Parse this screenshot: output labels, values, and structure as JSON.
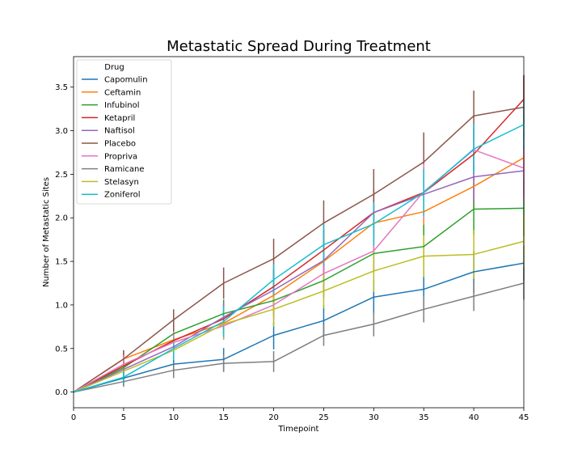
{
  "chart_data": {
    "type": "line",
    "title": "Metastatic Spread During Treatment",
    "xlabel": "Timepoint",
    "ylabel": "Number of Metastatic Sites",
    "xlim": [
      0,
      45
    ],
    "ylim": [
      -0.18,
      3.85
    ],
    "xticks": [
      0,
      5,
      10,
      15,
      20,
      25,
      30,
      35,
      40,
      45
    ],
    "yticks": [
      0.0,
      0.5,
      1.0,
      1.5,
      2.0,
      2.5,
      3.0,
      3.5
    ],
    "ytick_labels": [
      "0.0",
      "0.5",
      "1.0",
      "1.5",
      "2.0",
      "2.5",
      "3.0",
      "3.5"
    ],
    "grid": false,
    "legend": {
      "title": "Drug",
      "position": "top-left"
    },
    "x": [
      0,
      5,
      10,
      15,
      20,
      25,
      30,
      35,
      40,
      45
    ],
    "series": [
      {
        "name": "Capomulin",
        "color": "#1f77b4",
        "values": [
          0.0,
          0.16,
          0.32,
          0.375,
          0.65,
          0.82,
          1.09,
          1.18,
          1.38,
          1.48
        ],
        "errors": [
          0.0,
          0.08,
          0.12,
          0.13,
          0.16,
          0.18,
          0.2,
          0.21,
          0.24,
          0.2
        ]
      },
      {
        "name": "Ceftamin",
        "color": "#ff7f0e",
        "values": [
          0.0,
          0.38,
          0.6,
          0.79,
          1.11,
          1.5,
          1.94,
          2.07,
          2.36,
          2.69
        ],
        "errors": [
          0.0,
          0.1,
          0.12,
          0.14,
          0.17,
          0.19,
          0.22,
          0.23,
          0.26,
          0.3
        ]
      },
      {
        "name": "Infubinol",
        "color": "#2ca02c",
        "values": [
          0.0,
          0.28,
          0.67,
          0.9,
          1.05,
          1.28,
          1.59,
          1.67,
          2.1,
          2.11
        ],
        "errors": [
          0.0,
          0.09,
          0.13,
          0.16,
          0.18,
          0.2,
          0.22,
          0.25,
          0.3,
          0.32
        ]
      },
      {
        "name": "Ketapril",
        "color": "#d62728",
        "values": [
          0.0,
          0.3,
          0.59,
          0.84,
          1.21,
          1.63,
          2.06,
          2.29,
          2.73,
          3.36
        ],
        "errors": [
          0.0,
          0.1,
          0.13,
          0.17,
          0.2,
          0.23,
          0.26,
          0.28,
          0.3,
          0.28
        ]
      },
      {
        "name": "Naftisol",
        "color": "#9467bd",
        "values": [
          0.0,
          0.26,
          0.52,
          0.86,
          1.17,
          1.51,
          2.06,
          2.27,
          2.47,
          2.54
        ],
        "errors": [
          0.0,
          0.09,
          0.13,
          0.17,
          0.2,
          0.23,
          0.26,
          0.28,
          0.3,
          0.3
        ]
      },
      {
        "name": "Placebo",
        "color": "#8c564b",
        "values": [
          0.0,
          0.38,
          0.83,
          1.25,
          1.53,
          1.94,
          2.27,
          2.64,
          3.17,
          3.27
        ],
        "errors": [
          0.0,
          0.1,
          0.12,
          0.18,
          0.23,
          0.26,
          0.29,
          0.34,
          0.29,
          0.36
        ]
      },
      {
        "name": "Propriva",
        "color": "#e377c2",
        "values": [
          0.0,
          0.32,
          0.57,
          0.76,
          1.0,
          1.36,
          1.62,
          2.3,
          2.78,
          2.57
        ],
        "errors": [
          0.0,
          0.1,
          0.13,
          0.16,
          0.18,
          0.23,
          0.25,
          0.32,
          0.3,
          0.36
        ]
      },
      {
        "name": "Ramicane",
        "color": "#7f7f7f",
        "values": [
          0.0,
          0.12,
          0.25,
          0.33,
          0.35,
          0.65,
          0.78,
          0.95,
          1.1,
          1.25
        ],
        "errors": [
          0.0,
          0.06,
          0.09,
          0.1,
          0.12,
          0.12,
          0.14,
          0.15,
          0.17,
          0.19
        ]
      },
      {
        "name": "Stelasyn",
        "color": "#bcbd22",
        "values": [
          0.0,
          0.24,
          0.48,
          0.78,
          0.95,
          1.16,
          1.39,
          1.56,
          1.58,
          1.73
        ],
        "errors": [
          0.0,
          0.09,
          0.11,
          0.17,
          0.2,
          0.2,
          0.24,
          0.24,
          0.28,
          0.3
        ]
      },
      {
        "name": "Zoniferol",
        "color": "#17becf",
        "values": [
          0.0,
          0.17,
          0.5,
          0.81,
          1.29,
          1.69,
          1.93,
          2.29,
          2.79,
          3.07
        ],
        "errors": [
          0.0,
          0.08,
          0.13,
          0.18,
          0.18,
          0.24,
          0.25,
          0.27,
          0.29,
          0.29
        ]
      }
    ]
  }
}
